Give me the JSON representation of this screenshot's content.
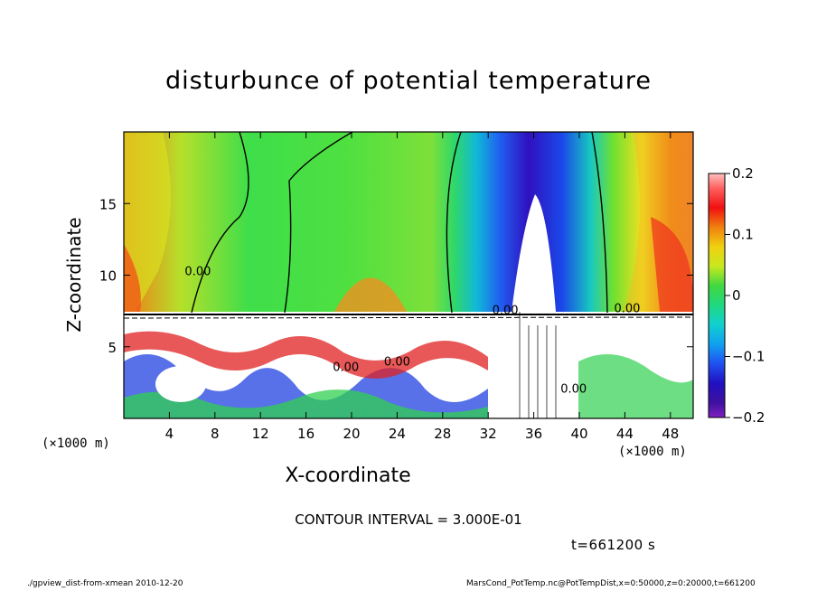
{
  "chart_data": {
    "type": "heatmap",
    "title": "disturbunce of potential temperature",
    "xlabel": "X-coordinate",
    "ylabel": "Z-coordinate",
    "x_unit": "(×1000 m)",
    "y_unit": "(×1000 m)",
    "xlim": [
      0,
      50
    ],
    "ylim": [
      0,
      20
    ],
    "x_ticks": [
      4,
      8,
      12,
      16,
      20,
      24,
      28,
      32,
      36,
      40,
      44,
      48
    ],
    "y_ticks": [
      5,
      10,
      15
    ],
    "colorbar": {
      "ticks": [
        "0.2",
        "0.1",
        "0",
        "−0.1",
        "−0.2"
      ],
      "values": [
        0.2,
        0.1,
        0,
        -0.1,
        -0.2
      ],
      "range": [
        -0.2,
        0.2
      ]
    },
    "contour_labels": [
      {
        "text": "0.00",
        "x": 6.5,
        "z": 10.0
      },
      {
        "text": "0.00",
        "x": 19.5,
        "z": 3.3
      },
      {
        "text": "0.00",
        "x": 24.0,
        "z": 3.7
      },
      {
        "text": "0.00",
        "x": 33.5,
        "z": 7.3
      },
      {
        "text": "0.00",
        "x": 39.5,
        "z": 1.8
      },
      {
        "text": "0.00",
        "x": 44.2,
        "z": 7.4
      }
    ]
  },
  "contour_interval": "CONTOUR INTERVAL = 3.000E-01",
  "time_label": "t=661200 s",
  "footer": {
    "left": "./gpview_dist-from-xmean  2010-12-20",
    "right": "MarsCond_PotTemp.nc@PotTempDist,x=0:50000,z=0:20000,t=661200"
  }
}
